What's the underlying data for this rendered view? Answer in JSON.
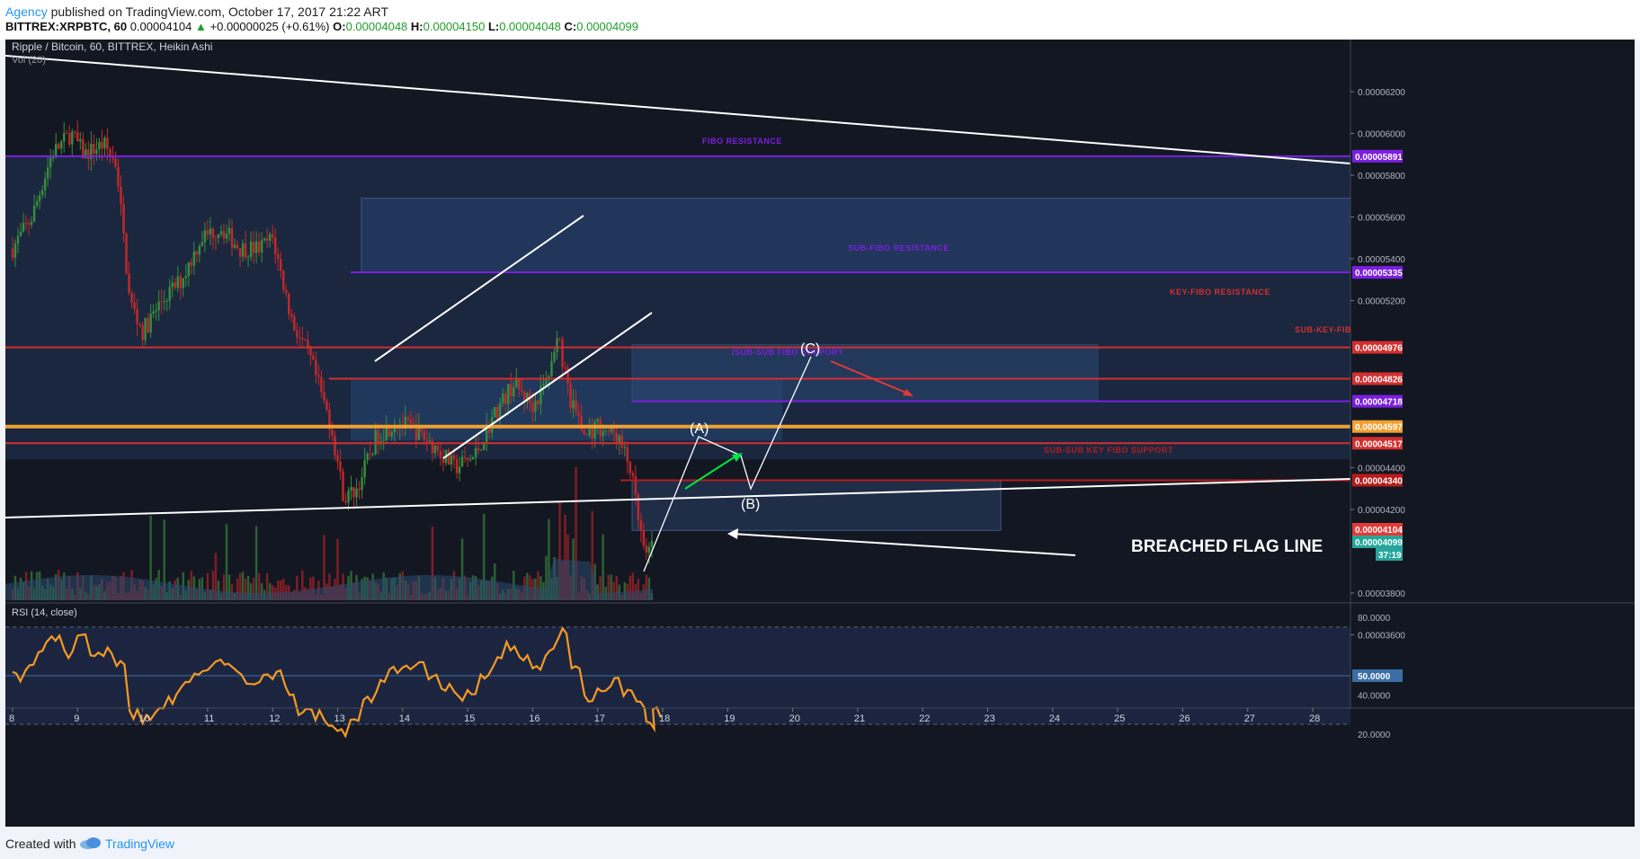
{
  "header": {
    "author": "Agency",
    "published_text": "published on TradingView.com, October 17, 2017 21:22 ART",
    "symbol": "BITTREX:XRPBTC, 60",
    "last": "0.00004104",
    "change": "+0.00000025 (+0.61%)",
    "open_label": "O:",
    "open": "0.00004048",
    "high_label": "H:",
    "high": "0.00004150",
    "low_label": "L:",
    "low": "0.00004048",
    "close_label": "C:",
    "close": "0.00004099"
  },
  "footer": {
    "created_with": "Created with",
    "brand": "TradingView"
  },
  "colors": {
    "background": "#131722",
    "up": "#26a69a",
    "up_candle": "#388e3c",
    "down_candle": "#c62828",
    "fibo": "#7b1fe0",
    "key_fibo": "#d32f2f",
    "orange": "#f0a030",
    "rsi": "#f59a23",
    "zone": "#1e3a5f"
  },
  "chart_data": [
    {
      "type": "candlestick",
      "title": "Ripple / Bitcoin, 60, BITTREX, Heikin Ashi",
      "indicator": "Vol (20)",
      "x_ticks": [
        "8",
        "9",
        "10",
        "11",
        "12",
        "13",
        "14",
        "15",
        "16",
        "17",
        "18",
        "19",
        "20",
        "21",
        "22",
        "23",
        "24",
        "25",
        "26",
        "27",
        "28"
      ],
      "y_ticks": [
        "0.00006200",
        "0.00006000",
        "0.00005800",
        "0.00005600",
        "0.00005400",
        "0.00005200",
        "0.00004400",
        "0.00004200",
        "0.00003800",
        "0.00003600"
      ],
      "ylim": [
        3.6e-05,
        6.25e-05
      ],
      "price_path": [
        [
          8.0,
          5.45e-05
        ],
        [
          8.3,
          5.6e-05
        ],
        [
          8.6,
          5.9e-05
        ],
        [
          8.9,
          6e-05
        ],
        [
          9.1,
          5.9e-05
        ],
        [
          9.4,
          5.95e-05
        ],
        [
          9.6,
          5.85e-05
        ],
        [
          9.8,
          5.2e-05
        ],
        [
          10.0,
          5.05e-05
        ],
        [
          10.3,
          5.2e-05
        ],
        [
          10.6,
          5.3e-05
        ],
        [
          10.9,
          5.5e-05
        ],
        [
          11.2,
          5.55e-05
        ],
        [
          11.5,
          5.45e-05
        ],
        [
          11.8,
          5.45e-05
        ],
        [
          12.0,
          5.5e-05
        ],
        [
          12.3,
          5.1e-05
        ],
        [
          12.6,
          4.9e-05
        ],
        [
          12.9,
          4.6e-05
        ],
        [
          13.1,
          4.25e-05
        ],
        [
          13.3,
          4.3e-05
        ],
        [
          13.6,
          4.55e-05
        ],
        [
          13.9,
          4.62e-05
        ],
        [
          14.2,
          4.58e-05
        ],
        [
          14.5,
          4.5e-05
        ],
        [
          14.8,
          4.4e-05
        ],
        [
          15.1,
          4.45e-05
        ],
        [
          15.4,
          4.65e-05
        ],
        [
          15.7,
          4.8e-05
        ],
        [
          16.0,
          4.7e-05
        ],
        [
          16.2,
          4.8e-05
        ],
        [
          16.4,
          5e-05
        ],
        [
          16.6,
          4.7e-05
        ],
        [
          16.8,
          4.55e-05
        ],
        [
          17.0,
          4.6e-05
        ],
        [
          17.3,
          4.55e-05
        ],
        [
          17.5,
          4.4e-05
        ],
        [
          17.65,
          4.1e-05
        ],
        [
          17.75,
          3.95e-05
        ],
        [
          17.85,
          4.1e-05
        ]
      ],
      "levels": [
        {
          "label": "FIBO RESISTANCE",
          "price": "0.00005891",
          "value": 5.891e-05,
          "color": "#7b1fe0"
        },
        {
          "label": "SUB-FIBO RESISTANCE",
          "price": "0.00005335",
          "value": 5.335e-05,
          "color": "#7b1fe0"
        },
        {
          "label": "KEY-FIBO RESISTANCE",
          "price": "0.00004976",
          "value": 4.976e-05,
          "color": "#d32f2f"
        },
        {
          "label": "SUB-KEY-FIB",
          "price": "0.00004826",
          "value": 4.826e-05,
          "color": "#d32f2f"
        },
        {
          "label": "/SUB-SUB FIBO SUPPORT",
          "price": "0.00004718",
          "value": 4.718e-05,
          "color": "#7b1fe0"
        },
        {
          "label": "",
          "price": "0.00004597",
          "value": 4.597e-05,
          "color": "#f0a030"
        },
        {
          "label": "",
          "price": "0.00004517",
          "value": 4.517e-05,
          "color": "#d32f2f"
        },
        {
          "label": "SUB-SUB KEY FIBO SUPPORT",
          "price": "0.00004340",
          "value": 4.34e-05,
          "color": "#b71c1c"
        }
      ],
      "price_tags": [
        {
          "text": "0.00004104",
          "value": 4.104e-05,
          "color": "#e53935"
        },
        {
          "text": "0.00004099",
          "value": 4.099e-05,
          "color": "#26a69a"
        },
        {
          "text": "37:19",
          "value": 4.05e-05,
          "color": "#26a69a"
        }
      ],
      "annotations": {
        "wave_a": "(A)",
        "wave_b": "(B)",
        "wave_c": "(C)",
        "breached": "BREACHED FLAG LINE"
      }
    },
    {
      "type": "line",
      "title": "RSI (14, close)",
      "y_ticks": [
        "80.0000",
        "40.0000",
        "20.0000"
      ],
      "ylim": [
        15,
        88
      ],
      "bands": [
        75,
        50,
        25
      ],
      "current": "50.0000",
      "series": [
        {
          "values": [
            [
              8.0,
              50
            ],
            [
              8.2,
              55
            ],
            [
              8.4,
              65
            ],
            [
              8.6,
              70
            ],
            [
              8.8,
              62
            ],
            [
              9.0,
              72
            ],
            [
              9.2,
              60
            ],
            [
              9.4,
              62
            ],
            [
              9.6,
              55
            ],
            [
              9.8,
              30
            ],
            [
              10.0,
              28
            ],
            [
              10.2,
              33
            ],
            [
              10.4,
              38
            ],
            [
              10.6,
              45
            ],
            [
              10.8,
              50
            ],
            [
              11.0,
              55
            ],
            [
              11.2,
              57
            ],
            [
              11.4,
              52
            ],
            [
              11.6,
              45
            ],
            [
              11.8,
              48
            ],
            [
              12.0,
              50
            ],
            [
              12.2,
              42
            ],
            [
              12.4,
              32
            ],
            [
              12.6,
              30
            ],
            [
              12.8,
              27
            ],
            [
              13.0,
              22
            ],
            [
              13.2,
              28
            ],
            [
              13.4,
              38
            ],
            [
              13.6,
              45
            ],
            [
              13.8,
              52
            ],
            [
              14.0,
              56
            ],
            [
              14.2,
              54
            ],
            [
              14.4,
              50
            ],
            [
              14.6,
              44
            ],
            [
              14.8,
              40
            ],
            [
              15.0,
              42
            ],
            [
              15.2,
              48
            ],
            [
              15.4,
              58
            ],
            [
              15.6,
              66
            ],
            [
              15.8,
              58
            ],
            [
              16.0,
              56
            ],
            [
              16.2,
              62
            ],
            [
              16.4,
              72
            ],
            [
              16.6,
              55
            ],
            [
              16.8,
              38
            ],
            [
              17.0,
              44
            ],
            [
              17.2,
              46
            ],
            [
              17.4,
              42
            ],
            [
              17.6,
              36
            ],
            [
              17.75,
              24
            ],
            [
              17.85,
              31
            ]
          ]
        }
      ]
    }
  ]
}
